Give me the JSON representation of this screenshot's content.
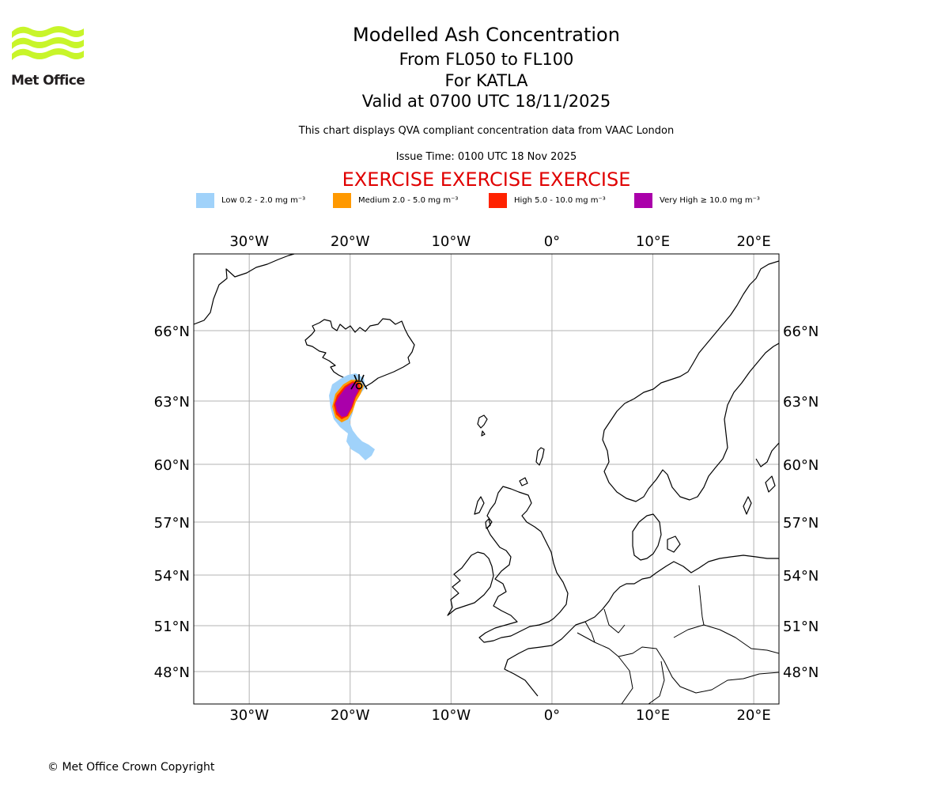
{
  "logo": {
    "text": "Met Office",
    "color": "#c8f52a"
  },
  "header": {
    "title": "Modelled Ash Concentration",
    "levels": "From FL050 to FL100",
    "volcano": "For KATLA",
    "valid": "Valid at 0700 UTC 18/11/2025",
    "note": "This chart displays QVA compliant concentration data from VAAC London",
    "issue": "Issue Time: 0100 UTC 18 Nov 2025",
    "exercise": "EXERCISE EXERCISE EXERCISE"
  },
  "legend": [
    {
      "label": "Low 0.2 - 2.0 mg m⁻³",
      "color": "#a0d2fa"
    },
    {
      "label": "Medium 2.0 - 5.0 mg m⁻³",
      "color": "#ff9900"
    },
    {
      "label": "High 5.0 - 10.0 mg m⁻³",
      "color": "#ff2200"
    },
    {
      "label": "Very High  ≥  10.0 mg m⁻³",
      "color": "#aa00aa"
    }
  ],
  "map": {
    "lon_range": [
      -35.5,
      22.5
    ],
    "lat_range": [
      46.5,
      69
    ],
    "lon_ticks": [
      {
        "lon": -30,
        "label": "30°W"
      },
      {
        "lon": -20,
        "label": "20°W"
      },
      {
        "lon": -10,
        "label": "10°W"
      },
      {
        "lon": 0,
        "label": "0°"
      },
      {
        "lon": 10,
        "label": "10°E"
      },
      {
        "lon": 20,
        "label": "20°E"
      }
    ],
    "lat_ticks": [
      {
        "lat": 66,
        "label": "66°N"
      },
      {
        "lat": 63,
        "label": "63°N"
      },
      {
        "lat": 60,
        "label": "60°N"
      },
      {
        "lat": 57,
        "label": "57°N"
      },
      {
        "lat": 54,
        "label": "54°N"
      },
      {
        "lat": 51,
        "label": "51°N"
      },
      {
        "lat": 48,
        "label": "48°N"
      }
    ],
    "gridlines": true,
    "volcano_name": "KATLA",
    "volcano_position": {
      "lon": -19.05,
      "lat": 63.63
    }
  },
  "footer": {
    "copyright": "© Met Office Crown Copyright"
  }
}
